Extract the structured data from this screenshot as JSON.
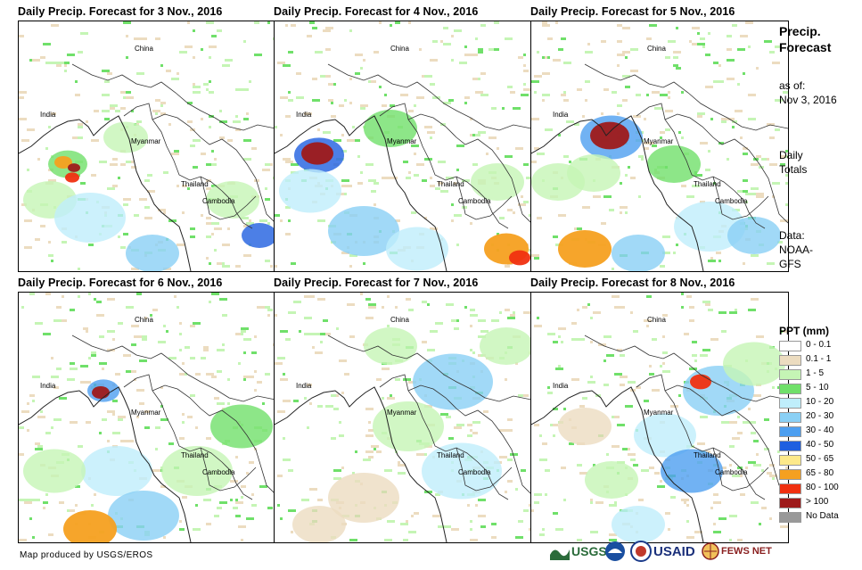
{
  "panels": [
    {
      "title": "Daily Precip. Forecast for 3 Nov., 2016"
    },
    {
      "title": "Daily Precip. Forecast for 4 Nov., 2016"
    },
    {
      "title": "Daily Precip. Forecast for 5 Nov., 2016"
    },
    {
      "title": "Daily Precip. Forecast for 6 Nov., 2016"
    },
    {
      "title": "Daily Precip. Forecast for 7 Nov., 2016"
    },
    {
      "title": "Daily Precip. Forecast for 8 Nov., 2016"
    }
  ],
  "map_labels": {
    "china": "China",
    "india": "India",
    "myanmar": "Myanmar",
    "thailand": "Thailand",
    "cambodia": "Cambodia"
  },
  "sidebar": {
    "title_line1": "Precip.",
    "title_line2": "Forecast",
    "asof_line1": "as of:",
    "asof_line2": "Nov 3, 2016",
    "totals_line1": "Daily",
    "totals_line2": "Totals",
    "data_line1": "Data:",
    "data_line2": "NOAA-",
    "data_line3": "GFS"
  },
  "legend": {
    "title": "PPT (mm)",
    "items": [
      {
        "label": "0 - 0.1",
        "color": "#ffffff"
      },
      {
        "label": "0.1 - 1",
        "color": "#ecdcc0"
      },
      {
        "label": "1 - 5",
        "color": "#c5f5b5"
      },
      {
        "label": "5 - 10",
        "color": "#70e06a"
      },
      {
        "label": "10 - 20",
        "color": "#bfeefb"
      },
      {
        "label": "20 - 30",
        "color": "#8ad0f5"
      },
      {
        "label": "30 - 40",
        "color": "#4d9ff0"
      },
      {
        "label": "40 - 50",
        "color": "#1f5fe0"
      },
      {
        "label": "50 - 65",
        "color": "#fde98a"
      },
      {
        "label": "65 - 80",
        "color": "#f5a020"
      },
      {
        "label": "80 - 100",
        "color": "#f03010"
      },
      {
        "label": "> 100",
        "color": "#9e1a1a"
      },
      {
        "label": "No Data",
        "color": "#999999"
      }
    ]
  },
  "footer": {
    "credit": "Map produced by USGS/EROS",
    "logo_usgs": "USGS",
    "logo_usaid": "USAID",
    "logo_fews": "FEWS NET"
  }
}
